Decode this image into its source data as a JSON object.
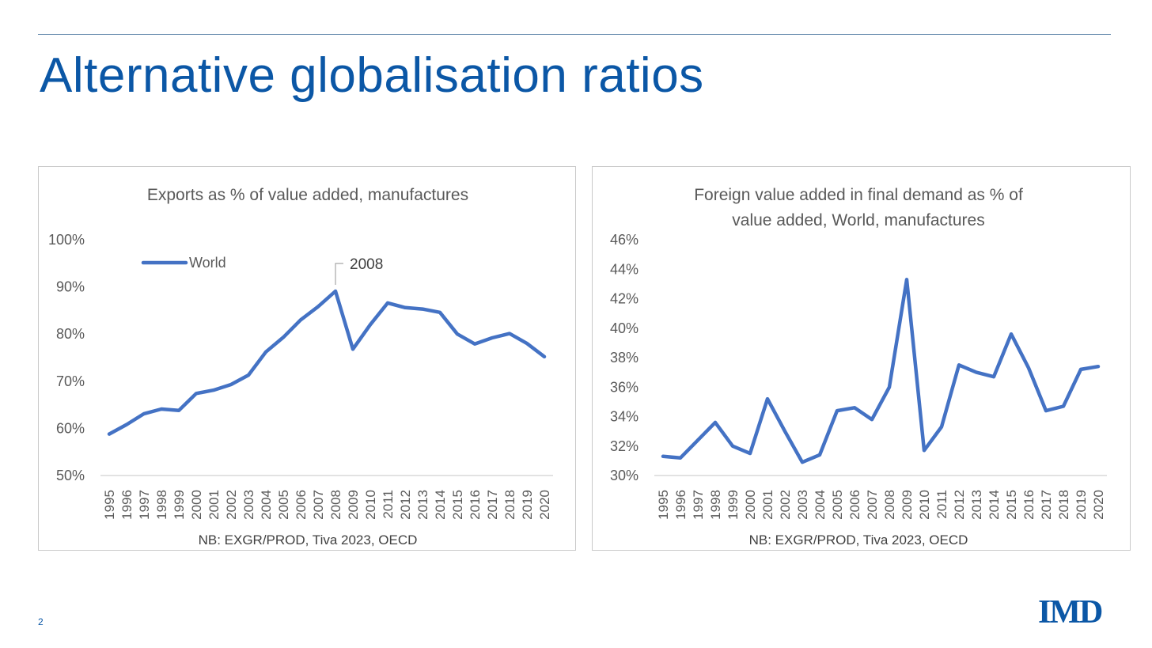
{
  "slide": {
    "title": "Alternative globalisation ratios",
    "page_number": "2",
    "logo_text": "IMD"
  },
  "colors": {
    "accent": "#0b57a6",
    "series": "#4472c4",
    "rule": "#6b8eb0",
    "text": "#595959",
    "gridline": "#d9d9d9"
  },
  "chart_data": [
    {
      "type": "line",
      "title": "Exports as % of value added, manufactures",
      "title_lines": [
        "Exports as % of value added, manufactures"
      ],
      "note": "NB: EXGR/PROD, Tiva 2023, OECD",
      "x": [
        "1995",
        "1996",
        "1997",
        "1998",
        "1999",
        "2000",
        "2001",
        "2002",
        "2003",
        "2004",
        "2005",
        "2006",
        "2007",
        "2008",
        "2009",
        "2010",
        "2011",
        "2012",
        "2013",
        "2014",
        "2015",
        "2016",
        "2017",
        "2018",
        "2019",
        "2020"
      ],
      "series": [
        {
          "name": "World",
          "values": [
            58.8,
            60.8,
            63.1,
            64.1,
            63.8,
            67.4,
            68.1,
            69.3,
            71.3,
            76.2,
            79.3,
            83.0,
            85.8,
            89.1,
            76.8,
            82.0,
            86.6,
            85.6,
            85.3,
            84.6,
            80.0,
            77.9,
            79.2,
            80.1,
            78.0,
            75.2
          ]
        }
      ],
      "ylim": [
        50,
        100
      ],
      "yticks": [
        "50%",
        "60%",
        "70%",
        "80%",
        "90%",
        "100%"
      ],
      "legend": "top-left",
      "grid": false,
      "annotations": [
        {
          "x": "2008",
          "label": "2008"
        }
      ]
    },
    {
      "type": "line",
      "title": "Foreign value added in final demand as % of value added, World, manufactures",
      "title_lines": [
        "Foreign value added in final demand as % of",
        "value added, World, manufactures"
      ],
      "note": "NB: EXGR/PROD, Tiva 2023, OECD",
      "x": [
        "1995",
        "1996",
        "1997",
        "1998",
        "1999",
        "2000",
        "2001",
        "2002",
        "2003",
        "2004",
        "2005",
        "2006",
        "2007",
        "2008",
        "2009",
        "2010",
        "2011",
        "2012",
        "2013",
        "2014",
        "2015",
        "2016",
        "2017",
        "2018",
        "2019",
        "2020"
      ],
      "series": [
        {
          "values": [
            31.3,
            31.2,
            32.4,
            33.6,
            32.0,
            31.5,
            35.2,
            33.0,
            30.9,
            31.4,
            34.4,
            34.6,
            33.8,
            36.0,
            43.3,
            31.7,
            33.3,
            37.5,
            37.0,
            36.7,
            39.6,
            37.3,
            34.4,
            34.7,
            37.2,
            37.4
          ]
        }
      ],
      "ylim": [
        30,
        46
      ],
      "yticks": [
        "30%",
        "32%",
        "34%",
        "36%",
        "38%",
        "40%",
        "42%",
        "44%",
        "46%"
      ],
      "grid": false
    }
  ]
}
